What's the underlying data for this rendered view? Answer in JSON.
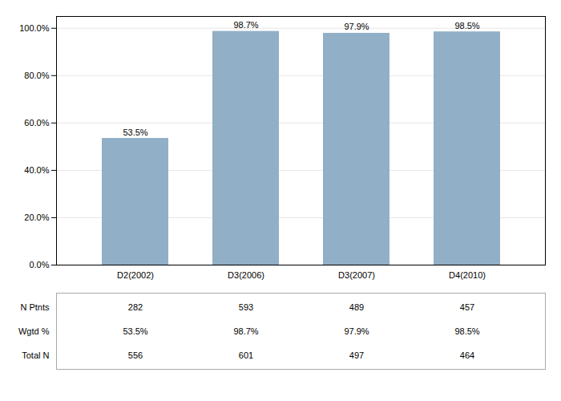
{
  "chart_data": {
    "type": "bar",
    "categories": [
      "D2(2002)",
      "D3(2006)",
      "D3(2007)",
      "D4(2010)"
    ],
    "values": [
      53.5,
      98.7,
      97.9,
      98.5
    ],
    "value_labels": [
      "53.5%",
      "98.7%",
      "97.9%",
      "98.5%"
    ],
    "data_labels": true,
    "color": "#91afc6",
    "ylim": [
      0,
      105
    ],
    "yticks": [
      {
        "value": 0,
        "label": "0.0%"
      },
      {
        "value": 20,
        "label": "20.0%"
      },
      {
        "value": 40,
        "label": "40.0%"
      },
      {
        "value": 60,
        "label": "60.0%"
      },
      {
        "value": 80,
        "label": "80.0%"
      },
      {
        "value": 100,
        "label": "100.0%"
      }
    ],
    "grid": true,
    "table": [
      {
        "label": "N Ptnts",
        "values": [
          282,
          593,
          489,
          457
        ]
      },
      {
        "label": "Wgtd %",
        "values": [
          53.5,
          98.7,
          97.9,
          98.5
        ],
        "value_labels": [
          "53.5%",
          "98.7%",
          "97.9%",
          "98.5%"
        ]
      },
      {
        "label": "Total N",
        "values": [
          556,
          601,
          497,
          464
        ]
      }
    ]
  }
}
